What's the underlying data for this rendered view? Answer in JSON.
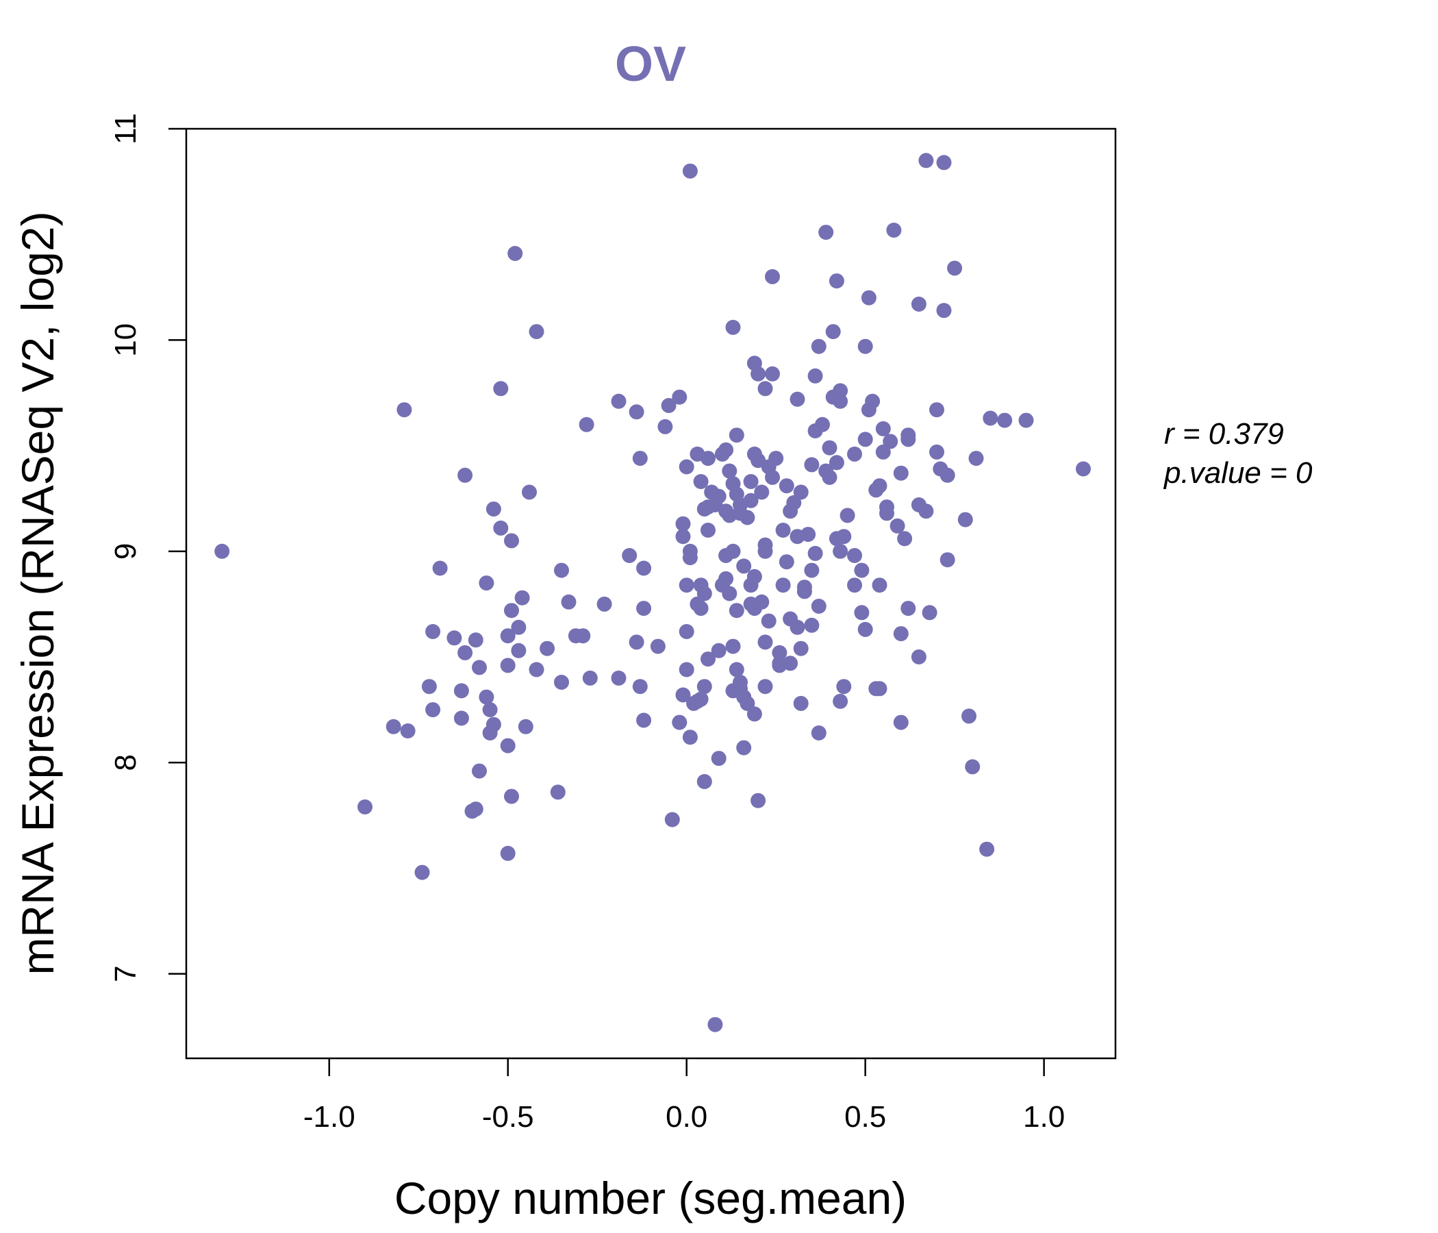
{
  "chart_data": {
    "type": "scatter",
    "title": "OV",
    "xlabel": "Copy number (seg.mean)",
    "ylabel": "mRNA Expression (RNASeq V2, log2)",
    "xlim": [
      -1.4,
      1.2
    ],
    "ylim": [
      6.6,
      11.0
    ],
    "xticks": [
      "-1.0",
      "-0.5",
      "0.0",
      "0.5",
      "1.0"
    ],
    "xtick_values": [
      -1.0,
      -0.5,
      0.0,
      0.5,
      1.0
    ],
    "yticks": [
      "7",
      "8",
      "9",
      "10",
      "11"
    ],
    "ytick_values": [
      7,
      8,
      9,
      10,
      11
    ],
    "grid": false,
    "color": "#7570b3",
    "stats": {
      "r_label": "r = 0.379",
      "p_label": "p.value = 0"
    },
    "points": [
      [
        -1.3,
        9.0
      ],
      [
        -0.9,
        7.79
      ],
      [
        -0.82,
        8.17
      ],
      [
        -0.78,
        8.15
      ],
      [
        -0.79,
        9.67
      ],
      [
        -0.74,
        7.48
      ],
      [
        -0.72,
        8.36
      ],
      [
        -0.71,
        8.25
      ],
      [
        -0.71,
        8.62
      ],
      [
        -0.69,
        8.92
      ],
      [
        -0.65,
        8.59
      ],
      [
        -0.63,
        8.34
      ],
      [
        -0.63,
        8.21
      ],
      [
        -0.62,
        8.52
      ],
      [
        -0.62,
        9.36
      ],
      [
        -0.6,
        7.77
      ],
      [
        -0.59,
        7.78
      ],
      [
        -0.59,
        8.58
      ],
      [
        -0.58,
        7.96
      ],
      [
        -0.58,
        8.45
      ],
      [
        -0.56,
        8.85
      ],
      [
        -0.56,
        8.31
      ],
      [
        -0.55,
        8.14
      ],
      [
        -0.55,
        8.25
      ],
      [
        -0.54,
        8.18
      ],
      [
        -0.54,
        9.2
      ],
      [
        -0.52,
        9.11
      ],
      [
        -0.52,
        9.77
      ],
      [
        -0.5,
        8.08
      ],
      [
        -0.5,
        8.46
      ],
      [
        -0.5,
        8.6
      ],
      [
        -0.5,
        7.57
      ],
      [
        -0.49,
        7.84
      ],
      [
        -0.49,
        8.72
      ],
      [
        -0.49,
        9.05
      ],
      [
        -0.48,
        10.41
      ],
      [
        -0.47,
        8.53
      ],
      [
        -0.47,
        8.64
      ],
      [
        -0.46,
        8.78
      ],
      [
        -0.45,
        8.17
      ],
      [
        -0.44,
        9.28
      ],
      [
        -0.42,
        10.04
      ],
      [
        -0.42,
        8.44
      ],
      [
        -0.39,
        8.54
      ],
      [
        -0.36,
        7.86
      ],
      [
        -0.35,
        8.91
      ],
      [
        -0.35,
        8.38
      ],
      [
        -0.33,
        8.76
      ],
      [
        -0.31,
        8.6
      ],
      [
        -0.29,
        8.6
      ],
      [
        -0.28,
        9.6
      ],
      [
        -0.27,
        8.4
      ],
      [
        -0.23,
        8.75
      ],
      [
        -0.19,
        8.4
      ],
      [
        -0.19,
        9.71
      ],
      [
        -0.16,
        8.98
      ],
      [
        -0.14,
        8.57
      ],
      [
        -0.14,
        9.66
      ],
      [
        -0.13,
        9.44
      ],
      [
        -0.13,
        8.36
      ],
      [
        -0.12,
        8.2
      ],
      [
        -0.12,
        8.73
      ],
      [
        -0.12,
        8.92
      ],
      [
        -0.08,
        8.55
      ],
      [
        -0.06,
        9.59
      ],
      [
        -0.05,
        9.69
      ],
      [
        -0.04,
        7.73
      ],
      [
        -0.02,
        9.73
      ],
      [
        -0.02,
        8.19
      ],
      [
        -0.01,
        8.32
      ],
      [
        -0.01,
        9.07
      ],
      [
        -0.01,
        9.13
      ],
      [
        0.0,
        9.4
      ],
      [
        0.0,
        8.62
      ],
      [
        0.0,
        8.44
      ],
      [
        0.0,
        8.84
      ],
      [
        0.01,
        8.12
      ],
      [
        0.01,
        9.0
      ],
      [
        0.01,
        8.97
      ],
      [
        0.01,
        10.8
      ],
      [
        0.02,
        8.28
      ],
      [
        0.03,
        9.46
      ],
      [
        0.03,
        8.75
      ],
      [
        0.03,
        8.29
      ],
      [
        0.04,
        8.73
      ],
      [
        0.04,
        8.84
      ],
      [
        0.04,
        9.33
      ],
      [
        0.04,
        8.3
      ],
      [
        0.05,
        9.2
      ],
      [
        0.05,
        8.8
      ],
      [
        0.05,
        7.91
      ],
      [
        0.05,
        8.36
      ],
      [
        0.06,
        9.44
      ],
      [
        0.06,
        9.1
      ],
      [
        0.06,
        8.49
      ],
      [
        0.06,
        9.21
      ],
      [
        0.07,
        9.28
      ],
      [
        0.08,
        9.22
      ],
      [
        0.08,
        6.76
      ],
      [
        0.09,
        9.26
      ],
      [
        0.09,
        8.53
      ],
      [
        0.09,
        8.02
      ],
      [
        0.1,
        9.46
      ],
      [
        0.1,
        8.84
      ],
      [
        0.11,
        9.19
      ],
      [
        0.11,
        9.48
      ],
      [
        0.11,
        8.98
      ],
      [
        0.11,
        8.87
      ],
      [
        0.12,
        9.38
      ],
      [
        0.12,
        8.8
      ],
      [
        0.12,
        9.17
      ],
      [
        0.13,
        9.32
      ],
      [
        0.13,
        9.0
      ],
      [
        0.13,
        8.55
      ],
      [
        0.13,
        8.34
      ],
      [
        0.13,
        10.06
      ],
      [
        0.14,
        9.55
      ],
      [
        0.14,
        8.72
      ],
      [
        0.14,
        8.44
      ],
      [
        0.14,
        9.27
      ],
      [
        0.15,
        9.22
      ],
      [
        0.15,
        9.18
      ],
      [
        0.15,
        8.38
      ],
      [
        0.15,
        8.35
      ],
      [
        0.16,
        8.93
      ],
      [
        0.16,
        8.31
      ],
      [
        0.16,
        8.07
      ],
      [
        0.17,
        9.16
      ],
      [
        0.17,
        8.28
      ],
      [
        0.18,
        8.84
      ],
      [
        0.18,
        9.33
      ],
      [
        0.18,
        8.75
      ],
      [
        0.18,
        9.24
      ],
      [
        0.19,
        8.88
      ],
      [
        0.19,
        9.46
      ],
      [
        0.19,
        8.73
      ],
      [
        0.19,
        8.23
      ],
      [
        0.19,
        9.89
      ],
      [
        0.2,
        9.43
      ],
      [
        0.2,
        9.84
      ],
      [
        0.2,
        7.82
      ],
      [
        0.21,
        8.76
      ],
      [
        0.21,
        9.28
      ],
      [
        0.22,
        8.57
      ],
      [
        0.22,
        9.77
      ],
      [
        0.22,
        8.36
      ],
      [
        0.22,
        9.03
      ],
      [
        0.22,
        9.0
      ],
      [
        0.23,
        8.67
      ],
      [
        0.23,
        9.4
      ],
      [
        0.24,
        10.3
      ],
      [
        0.24,
        9.84
      ],
      [
        0.24,
        9.35
      ],
      [
        0.25,
        9.44
      ],
      [
        0.26,
        8.52
      ],
      [
        0.26,
        8.47
      ],
      [
        0.26,
        8.46
      ],
      [
        0.27,
        8.84
      ],
      [
        0.27,
        9.1
      ],
      [
        0.28,
        9.31
      ],
      [
        0.28,
        8.95
      ],
      [
        0.29,
        8.68
      ],
      [
        0.29,
        8.47
      ],
      [
        0.29,
        9.19
      ],
      [
        0.3,
        9.23
      ],
      [
        0.31,
        9.72
      ],
      [
        0.31,
        8.64
      ],
      [
        0.31,
        9.07
      ],
      [
        0.32,
        8.54
      ],
      [
        0.32,
        8.28
      ],
      [
        0.32,
        9.28
      ],
      [
        0.33,
        8.81
      ],
      [
        0.33,
        8.83
      ],
      [
        0.34,
        9.08
      ],
      [
        0.35,
        9.41
      ],
      [
        0.35,
        8.65
      ],
      [
        0.35,
        8.91
      ],
      [
        0.36,
        9.83
      ],
      [
        0.36,
        9.57
      ],
      [
        0.36,
        8.99
      ],
      [
        0.37,
        8.74
      ],
      [
        0.37,
        9.97
      ],
      [
        0.37,
        8.14
      ],
      [
        0.38,
        9.6
      ],
      [
        0.39,
        10.51
      ],
      [
        0.39,
        9.38
      ],
      [
        0.4,
        9.35
      ],
      [
        0.4,
        9.49
      ],
      [
        0.41,
        10.04
      ],
      [
        0.41,
        9.73
      ],
      [
        0.42,
        10.28
      ],
      [
        0.42,
        9.06
      ],
      [
        0.42,
        9.42
      ],
      [
        0.43,
        9.76
      ],
      [
        0.43,
        9.71
      ],
      [
        0.43,
        9.0
      ],
      [
        0.43,
        8.29
      ],
      [
        0.44,
        8.36
      ],
      [
        0.44,
        9.07
      ],
      [
        0.45,
        9.17
      ],
      [
        0.47,
        9.46
      ],
      [
        0.47,
        8.84
      ],
      [
        0.47,
        8.98
      ],
      [
        0.49,
        8.91
      ],
      [
        0.49,
        8.71
      ],
      [
        0.5,
        9.53
      ],
      [
        0.5,
        8.63
      ],
      [
        0.5,
        9.97
      ],
      [
        0.51,
        10.2
      ],
      [
        0.51,
        9.67
      ],
      [
        0.52,
        9.71
      ],
      [
        0.53,
        9.29
      ],
      [
        0.53,
        8.35
      ],
      [
        0.54,
        8.35
      ],
      [
        0.54,
        8.84
      ],
      [
        0.54,
        9.31
      ],
      [
        0.55,
        9.47
      ],
      [
        0.55,
        9.58
      ],
      [
        0.56,
        9.18
      ],
      [
        0.56,
        9.21
      ],
      [
        0.57,
        9.52
      ],
      [
        0.58,
        10.52
      ],
      [
        0.59,
        9.12
      ],
      [
        0.6,
        8.61
      ],
      [
        0.6,
        8.19
      ],
      [
        0.6,
        9.37
      ],
      [
        0.61,
        9.06
      ],
      [
        0.62,
        9.55
      ],
      [
        0.62,
        9.53
      ],
      [
        0.62,
        8.73
      ],
      [
        0.65,
        10.17
      ],
      [
        0.65,
        9.22
      ],
      [
        0.65,
        8.5
      ],
      [
        0.67,
        9.19
      ],
      [
        0.67,
        10.85
      ],
      [
        0.68,
        8.71
      ],
      [
        0.7,
        9.47
      ],
      [
        0.7,
        9.67
      ],
      [
        0.71,
        9.39
      ],
      [
        0.72,
        10.14
      ],
      [
        0.72,
        10.84
      ],
      [
        0.73,
        9.36
      ],
      [
        0.73,
        8.96
      ],
      [
        0.75,
        10.34
      ],
      [
        0.78,
        9.15
      ],
      [
        0.79,
        8.22
      ],
      [
        0.8,
        7.98
      ],
      [
        0.81,
        9.44
      ],
      [
        0.84,
        7.59
      ],
      [
        0.85,
        9.63
      ],
      [
        0.89,
        9.62
      ],
      [
        0.95,
        9.62
      ],
      [
        1.11,
        9.39
      ]
    ]
  }
}
